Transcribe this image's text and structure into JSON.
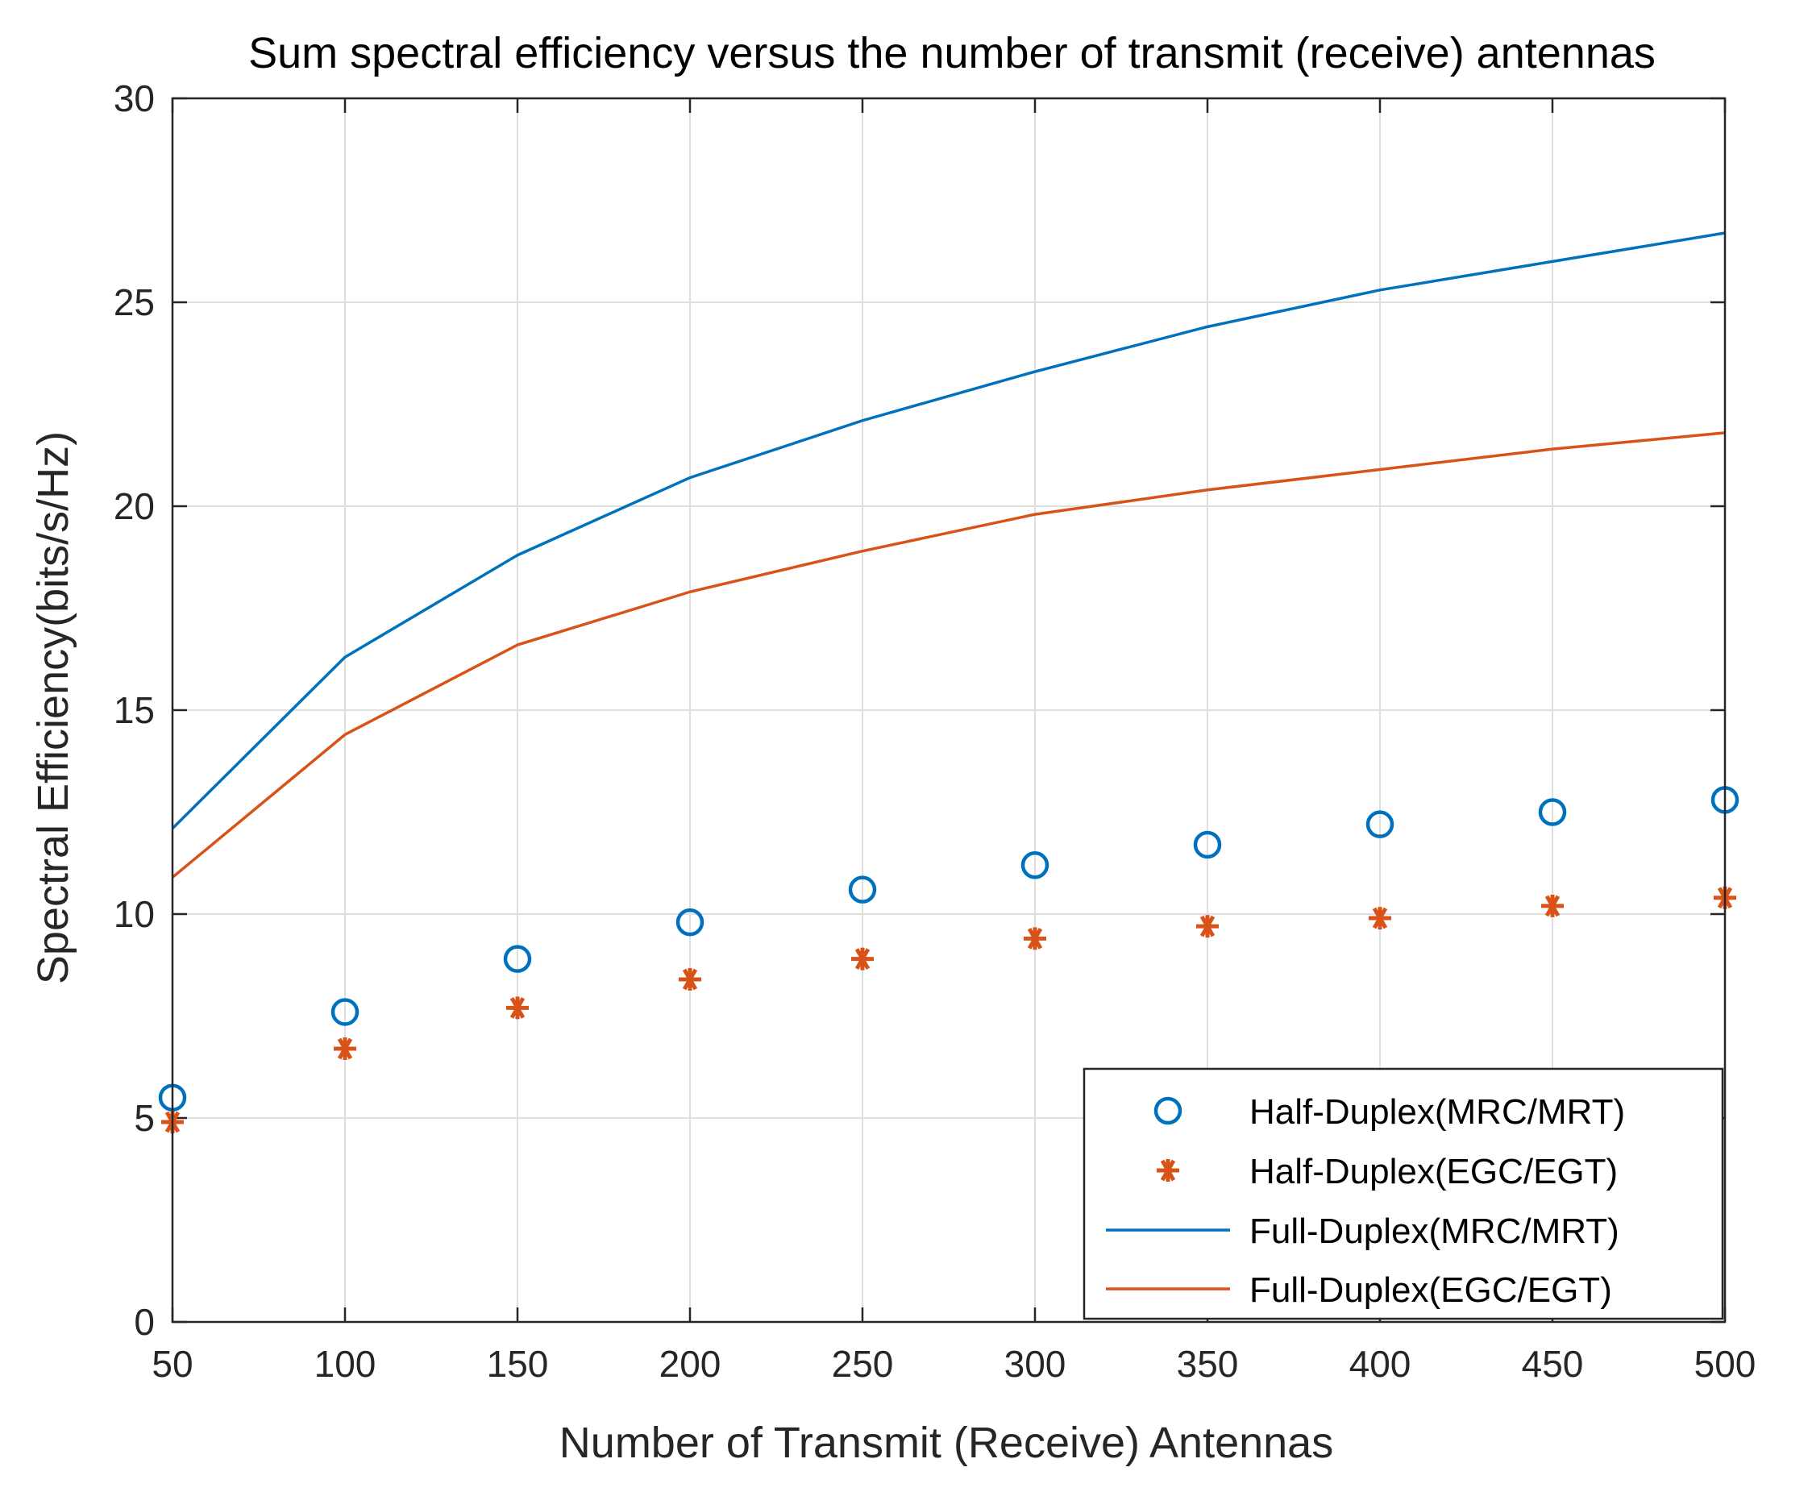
{
  "chart_data": {
    "type": "line",
    "title": "Sum spectral efficiency versus the number of transmit (receive) antennas",
    "xlabel": "Number of Transmit (Receive) Antennas",
    "ylabel": "Spectral Efficiency(bits/s/Hz)",
    "xlim": [
      50,
      500
    ],
    "ylim": [
      0,
      30
    ],
    "xticks": [
      50,
      100,
      150,
      200,
      250,
      300,
      350,
      400,
      450,
      500
    ],
    "yticks": [
      0,
      5,
      10,
      15,
      20,
      25,
      30
    ],
    "grid": true,
    "legend_position": "bottom-right",
    "x": [
      50,
      100,
      150,
      200,
      250,
      300,
      350,
      400,
      450,
      500
    ],
    "series": [
      {
        "name": "Half-Duplex(MRC/MRT)",
        "style": "circle-markers",
        "color": "#0072BD",
        "values": [
          5.5,
          7.6,
          8.9,
          9.8,
          10.6,
          11.2,
          11.7,
          12.2,
          12.5,
          12.8
        ]
      },
      {
        "name": "Half-Duplex(EGC/EGT)",
        "style": "star-markers",
        "color": "#D95319",
        "values": [
          4.9,
          6.7,
          7.7,
          8.4,
          8.9,
          9.4,
          9.7,
          9.9,
          10.2,
          10.4
        ]
      },
      {
        "name": "Full-Duplex(MRC/MRT)",
        "style": "line",
        "color": "#0072BD",
        "values": [
          12.1,
          16.3,
          18.8,
          20.7,
          22.1,
          23.3,
          24.4,
          25.3,
          26.0,
          26.7
        ]
      },
      {
        "name": "Full-Duplex(EGC/EGT)",
        "style": "line",
        "color": "#D95319",
        "values": [
          10.9,
          14.4,
          16.6,
          17.9,
          18.9,
          19.8,
          20.4,
          20.9,
          21.4,
          21.8
        ]
      }
    ]
  }
}
